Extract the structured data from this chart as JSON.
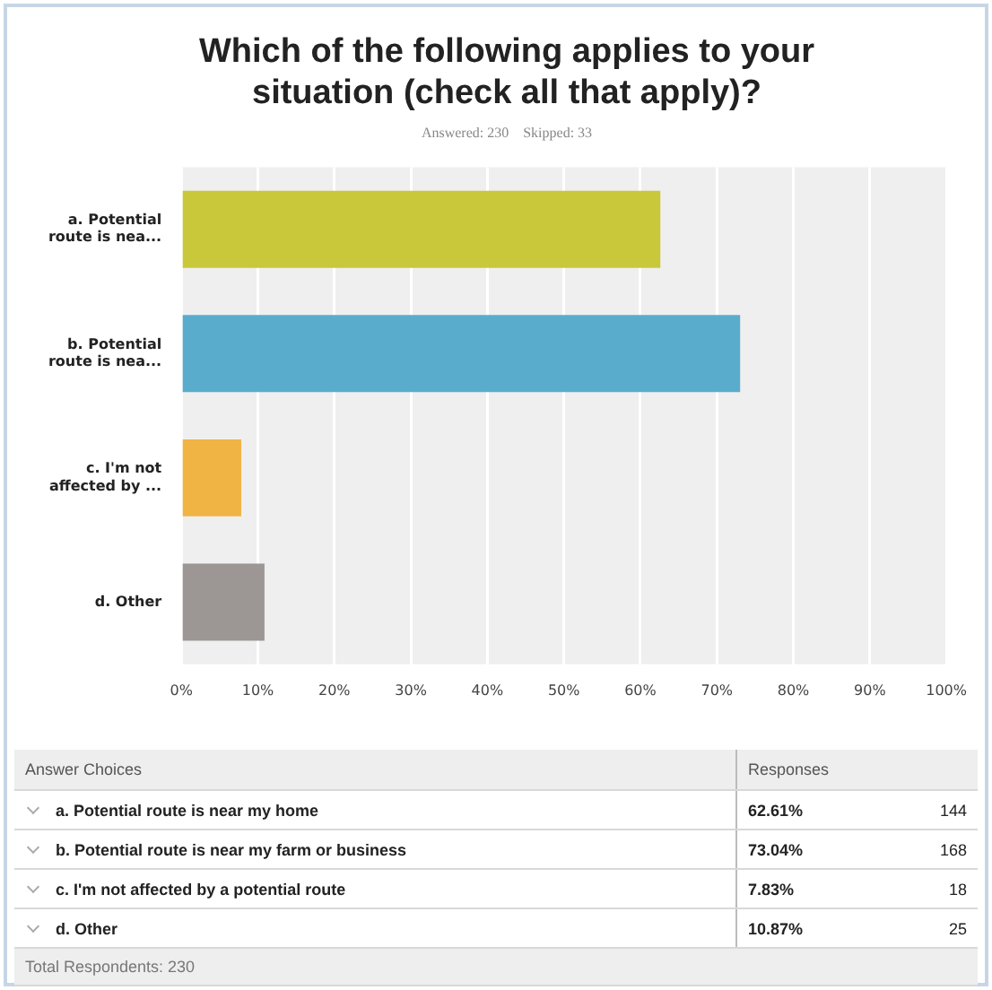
{
  "chart_data": {
    "type": "bar",
    "orientation": "horizontal",
    "title": "Which of the following applies to your situation (check all that apply)?",
    "subtitle": "Answered: 230    Skipped: 33",
    "categories": [
      "a. Potential route is nea...",
      "b. Potential route is nea...",
      "c. I'm not affected by ...",
      "d. Other"
    ],
    "values": [
      62.61,
      73.04,
      7.83,
      10.87
    ],
    "colors": [
      "#c8c83a",
      "#5aaccc",
      "#f0b445",
      "#9c9794"
    ],
    "xlim": [
      0,
      100
    ],
    "xticks": [
      {
        "value": 0,
        "label": "0%"
      },
      {
        "value": 10,
        "label": "10%"
      },
      {
        "value": 20,
        "label": "20%"
      },
      {
        "value": 30,
        "label": "30%"
      },
      {
        "value": 40,
        "label": "40%"
      },
      {
        "value": 50,
        "label": "50%"
      },
      {
        "value": 60,
        "label": "60%"
      },
      {
        "value": 70,
        "label": "70%"
      },
      {
        "value": 80,
        "label": "80%"
      },
      {
        "value": 90,
        "label": "90%"
      },
      {
        "value": 100,
        "label": "100%"
      }
    ],
    "grid": "x",
    "legend": false,
    "annotations": [
      "Answer Choices",
      "Responses",
      "a. Potential route is near my home",
      "62.61%",
      "144",
      "b. Potential route is near my farm or business",
      "73.04%",
      "168",
      "c. I'm not affected by a potential route",
      "7.83%",
      "18",
      "d. Other",
      "10.87%",
      "25",
      "Total Respondents: 230"
    ]
  }
}
